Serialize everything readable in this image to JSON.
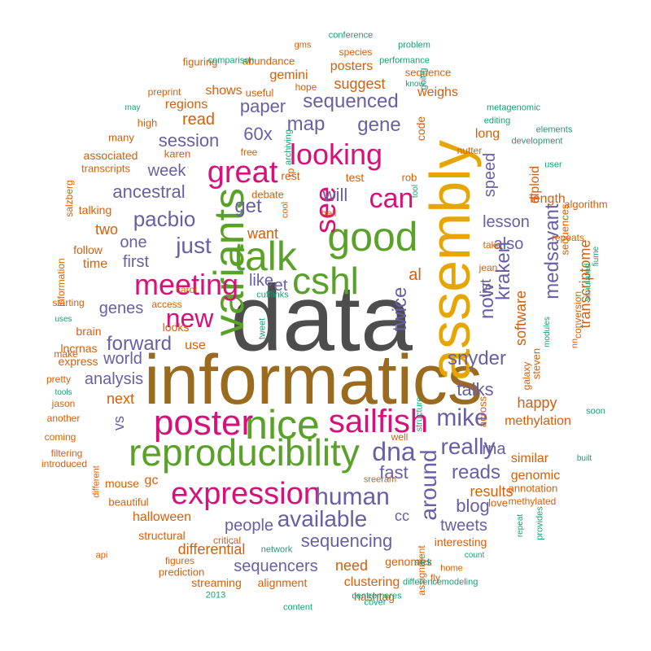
{
  "colors": {
    "dark": "#4d4d4d",
    "gold": "#e6a500",
    "olive": "#9a6b1e",
    "green": "#5aa12a",
    "magenta": "#d6127a",
    "purple": "#6a5fa6",
    "orange": "#d75f0b",
    "teal": "#1b9e77"
  },
  "words": [
    {
      "text": "data",
      "size": 115,
      "color": "dark"
    },
    {
      "text": "informatics",
      "size": 86,
      "color": "olive"
    },
    {
      "text": "assembly",
      "size": 70,
      "color": "gold"
    },
    {
      "text": "variants",
      "size": 52,
      "color": "green"
    },
    {
      "text": "reproducibility",
      "size": 46,
      "color": "green"
    },
    {
      "text": "nice",
      "size": 50,
      "color": "green"
    },
    {
      "text": "good",
      "size": 50,
      "color": "green"
    },
    {
      "text": "talk",
      "size": 50,
      "color": "green"
    },
    {
      "text": "cshl",
      "size": 46,
      "color": "green"
    },
    {
      "text": "poster",
      "size": 44,
      "color": "magenta"
    },
    {
      "text": "sailfish",
      "size": 40,
      "color": "magenta"
    },
    {
      "text": "expression",
      "size": 38,
      "color": "magenta"
    },
    {
      "text": "great",
      "size": 38,
      "color": "magenta"
    },
    {
      "text": "looking",
      "size": 36,
      "color": "magenta"
    },
    {
      "text": "meeting",
      "size": 36,
      "color": "magenta"
    },
    {
      "text": "see",
      "size": 36,
      "color": "magenta"
    },
    {
      "text": "can",
      "size": 34,
      "color": "magenta"
    },
    {
      "text": "new",
      "size": 32,
      "color": "magenta"
    },
    {
      "text": "dna",
      "size": 32,
      "color": "purple"
    },
    {
      "text": "human",
      "size": 30,
      "color": "purple"
    },
    {
      "text": "mike",
      "size": 30,
      "color": "purple"
    },
    {
      "text": "available",
      "size": 28,
      "color": "purple"
    },
    {
      "text": "really",
      "size": 28,
      "color": "purple"
    },
    {
      "text": "around",
      "size": 28,
      "color": "purple"
    },
    {
      "text": "just",
      "size": 28,
      "color": "purple"
    },
    {
      "text": "pacbio",
      "size": 26,
      "color": "purple"
    },
    {
      "text": "snyder",
      "size": 24,
      "color": "purple"
    },
    {
      "text": "kraken",
      "size": 24,
      "color": "purple"
    },
    {
      "text": "medsavant",
      "size": 24,
      "color": "purple"
    },
    {
      "text": "twice",
      "size": 24,
      "color": "purple"
    },
    {
      "text": "now",
      "size": 24,
      "color": "purple"
    },
    {
      "text": "forward",
      "size": 24,
      "color": "purple"
    },
    {
      "text": "sequenced",
      "size": 24,
      "color": "purple"
    },
    {
      "text": "gene",
      "size": 24,
      "color": "purple"
    },
    {
      "text": "map",
      "size": 24,
      "color": "purple"
    },
    {
      "text": "paper",
      "size": 22,
      "color": "purple"
    },
    {
      "text": "get",
      "size": 24,
      "color": "purple"
    },
    {
      "text": "60x",
      "size": 22,
      "color": "purple"
    },
    {
      "text": "session",
      "size": 22,
      "color": "purple"
    },
    {
      "text": "week",
      "size": 20,
      "color": "purple"
    },
    {
      "text": "ancestral",
      "size": 22,
      "color": "purple"
    },
    {
      "text": "will",
      "size": 22,
      "color": "purple"
    },
    {
      "text": "one",
      "size": 20,
      "color": "purple"
    },
    {
      "text": "first",
      "size": 20,
      "color": "purple"
    },
    {
      "text": "like",
      "size": 20,
      "color": "purple"
    },
    {
      "text": "et",
      "size": 20,
      "color": "purple"
    },
    {
      "text": "genes",
      "size": 20,
      "color": "purple"
    },
    {
      "text": "world",
      "size": 20,
      "color": "purple"
    },
    {
      "text": "analysis",
      "size": 20,
      "color": "purple"
    },
    {
      "text": "talks",
      "size": 22,
      "color": "purple"
    },
    {
      "text": "reads",
      "size": 24,
      "color": "purple"
    },
    {
      "text": "fast",
      "size": 22,
      "color": "purple"
    },
    {
      "text": "blog",
      "size": 22,
      "color": "purple"
    },
    {
      "text": "people",
      "size": 20,
      "color": "purple"
    },
    {
      "text": "sequencing",
      "size": 22,
      "color": "purple"
    },
    {
      "text": "sequencers",
      "size": 20,
      "color": "purple"
    },
    {
      "text": "speed",
      "size": 20,
      "color": "purple"
    },
    {
      "text": "lesson",
      "size": 20,
      "color": "purple"
    },
    {
      "text": "also",
      "size": 20,
      "color": "purple"
    },
    {
      "text": "list",
      "size": 18,
      "color": "purple"
    },
    {
      "text": "rna",
      "size": 20,
      "color": "purple"
    },
    {
      "text": "vs",
      "size": 18,
      "color": "purple"
    },
    {
      "text": "tweets",
      "size": 20,
      "color": "purple"
    },
    {
      "text": "cc",
      "size": 18,
      "color": "purple"
    },
    {
      "text": "software",
      "size": 18,
      "color": "orange"
    },
    {
      "text": "transcriptome",
      "size": 18,
      "color": "orange"
    },
    {
      "text": "happy",
      "size": 18,
      "color": "orange"
    },
    {
      "text": "methylation",
      "size": 16,
      "color": "orange"
    },
    {
      "text": "results",
      "size": 18,
      "color": "orange"
    },
    {
      "text": "genomic",
      "size": 16,
      "color": "orange"
    },
    {
      "text": "similar",
      "size": 16,
      "color": "orange"
    },
    {
      "text": "differential",
      "size": 18,
      "color": "orange"
    },
    {
      "text": "halloween",
      "size": 16,
      "color": "orange"
    },
    {
      "text": "structural",
      "size": 14,
      "color": "orange"
    },
    {
      "text": "need",
      "size": 18,
      "color": "orange"
    },
    {
      "text": "clustering",
      "size": 16,
      "color": "orange"
    },
    {
      "text": "alignment",
      "size": 14,
      "color": "orange"
    },
    {
      "text": "hashtag",
      "size": 14,
      "color": "orange"
    },
    {
      "text": "streaming",
      "size": 14,
      "color": "orange"
    },
    {
      "text": "prediction",
      "size": 13,
      "color": "orange"
    },
    {
      "text": "figures",
      "size": 12,
      "color": "orange"
    },
    {
      "text": "genomes",
      "size": 14,
      "color": "orange"
    },
    {
      "text": "interesting",
      "size": 14,
      "color": "orange"
    },
    {
      "text": "annotation",
      "size": 13,
      "color": "orange"
    },
    {
      "text": "methylated",
      "size": 12,
      "color": "orange"
    },
    {
      "text": "love",
      "size": 13,
      "color": "orange"
    },
    {
      "text": "suggest",
      "size": 18,
      "color": "orange"
    },
    {
      "text": "read",
      "size": 20,
      "color": "orange"
    },
    {
      "text": "regions",
      "size": 16,
      "color": "orange"
    },
    {
      "text": "shows",
      "size": 16,
      "color": "orange"
    },
    {
      "text": "gemini",
      "size": 16,
      "color": "orange"
    },
    {
      "text": "posters",
      "size": 16,
      "color": "orange"
    },
    {
      "text": "weighs",
      "size": 16,
      "color": "orange"
    },
    {
      "text": "code",
      "size": 14,
      "color": "orange"
    },
    {
      "text": "long",
      "size": 16,
      "color": "orange"
    },
    {
      "text": "diploid",
      "size": 16,
      "color": "orange"
    },
    {
      "text": "length",
      "size": 16,
      "color": "orange"
    },
    {
      "text": "al",
      "size": 20,
      "color": "orange"
    },
    {
      "text": "want",
      "size": 18,
      "color": "orange"
    },
    {
      "text": "two",
      "size": 18,
      "color": "orange"
    },
    {
      "text": "time",
      "size": 16,
      "color": "orange"
    },
    {
      "text": "brain",
      "size": 14,
      "color": "orange"
    },
    {
      "text": "lncrnas",
      "size": 14,
      "color": "orange"
    },
    {
      "text": "express",
      "size": 14,
      "color": "orange"
    },
    {
      "text": "next",
      "size": 18,
      "color": "orange"
    },
    {
      "text": "gc",
      "size": 16,
      "color": "orange"
    },
    {
      "text": "mouse",
      "size": 14,
      "color": "orange"
    },
    {
      "text": "beautiful",
      "size": 13,
      "color": "orange"
    },
    {
      "text": "looks",
      "size": 14,
      "color": "orange"
    },
    {
      "text": "use",
      "size": 16,
      "color": "orange"
    },
    {
      "text": "test",
      "size": 14,
      "color": "orange"
    },
    {
      "text": "rob",
      "size": 13,
      "color": "orange"
    },
    {
      "text": "rest",
      "size": 14,
      "color": "orange"
    },
    {
      "text": "debate",
      "size": 13,
      "color": "orange"
    },
    {
      "text": "hell",
      "size": 12,
      "color": "orange"
    },
    {
      "text": "rp",
      "size": 12,
      "color": "orange"
    },
    {
      "text": "free",
      "size": 12,
      "color": "orange"
    },
    {
      "text": "karen",
      "size": 13,
      "color": "orange"
    },
    {
      "text": "associated",
      "size": 14,
      "color": "orange"
    },
    {
      "text": "transcripts",
      "size": 13,
      "color": "orange"
    },
    {
      "text": "talking",
      "size": 14,
      "color": "orange"
    },
    {
      "text": "follow",
      "size": 14,
      "color": "orange"
    },
    {
      "text": "many",
      "size": 13,
      "color": "orange"
    },
    {
      "text": "high",
      "size": 13,
      "color": "orange"
    },
    {
      "text": "figuring",
      "size": 13,
      "color": "orange"
    },
    {
      "text": "abundance",
      "size": 13,
      "color": "orange"
    },
    {
      "text": "preprint",
      "size": 12,
      "color": "orange"
    },
    {
      "text": "useful",
      "size": 13,
      "color": "orange"
    },
    {
      "text": "hope",
      "size": 12,
      "color": "orange"
    },
    {
      "text": "sequence",
      "size": 13,
      "color": "orange"
    },
    {
      "text": "species",
      "size": 12,
      "color": "orange"
    },
    {
      "text": "nutter",
      "size": 12,
      "color": "orange"
    },
    {
      "text": "algorithm",
      "size": 13,
      "color": "orange"
    },
    {
      "text": "repeats",
      "size": 12,
      "color": "orange"
    },
    {
      "text": "sequences",
      "size": 13,
      "color": "orange"
    },
    {
      "text": "steven",
      "size": 13,
      "color": "orange"
    },
    {
      "text": "galaxy",
      "size": 12,
      "color": "orange"
    },
    {
      "text": "conversion",
      "size": 12,
      "color": "orange"
    },
    {
      "text": "jean",
      "size": 12,
      "color": "orange"
    },
    {
      "text": "take",
      "size": 12,
      "color": "orange"
    },
    {
      "text": "carol",
      "size": 12,
      "color": "orange"
    },
    {
      "text": "access",
      "size": 12,
      "color": "orange"
    },
    {
      "text": "information",
      "size": 12,
      "color": "orange"
    },
    {
      "text": "starting",
      "size": 12,
      "color": "orange"
    },
    {
      "text": "salzberg",
      "size": 12,
      "color": "orange"
    },
    {
      "text": "make",
      "size": 12,
      "color": "orange"
    },
    {
      "text": "pretty",
      "size": 12,
      "color": "orange"
    },
    {
      "text": "jason",
      "size": 12,
      "color": "orange"
    },
    {
      "text": "another",
      "size": 12,
      "color": "orange"
    },
    {
      "text": "coming",
      "size": 12,
      "color": "orange"
    },
    {
      "text": "introduced",
      "size": 12,
      "color": "orange"
    },
    {
      "text": "filtering",
      "size": 12,
      "color": "orange"
    },
    {
      "text": "different",
      "size": 11,
      "color": "orange"
    },
    {
      "text": "api",
      "size": 11,
      "color": "orange"
    },
    {
      "text": "cool",
      "size": 11,
      "color": "orange"
    },
    {
      "text": "assignment",
      "size": 12,
      "color": "orange"
    },
    {
      "text": "home",
      "size": 11,
      "color": "orange"
    },
    {
      "text": "fly",
      "size": 12,
      "color": "orange"
    },
    {
      "text": "well",
      "size": 12,
      "color": "orange"
    },
    {
      "text": "critical",
      "size": 12,
      "color": "orange"
    },
    {
      "text": "sreeram",
      "size": 11,
      "color": "orange"
    },
    {
      "text": "across",
      "size": 13,
      "color": "orange"
    },
    {
      "text": "nn",
      "size": 11,
      "color": "orange"
    },
    {
      "text": "gms",
      "size": 11,
      "color": "orange"
    },
    {
      "text": "conference",
      "size": 11,
      "color": "teal"
    },
    {
      "text": "problem",
      "size": 11,
      "color": "teal"
    },
    {
      "text": "performance",
      "size": 11,
      "color": "teal"
    },
    {
      "text": "comparison",
      "size": 11,
      "color": "teal"
    },
    {
      "text": "going",
      "size": 11,
      "color": "teal"
    },
    {
      "text": "know",
      "size": 10,
      "color": "teal"
    },
    {
      "text": "may",
      "size": 10,
      "color": "teal"
    },
    {
      "text": "metagenomic",
      "size": 11,
      "color": "teal"
    },
    {
      "text": "editing",
      "size": 11,
      "color": "teal"
    },
    {
      "text": "elements",
      "size": 11,
      "color": "teal"
    },
    {
      "text": "development",
      "size": 11,
      "color": "teal"
    },
    {
      "text": "user",
      "size": 11,
      "color": "teal"
    },
    {
      "text": "archiving",
      "size": 11,
      "color": "teal"
    },
    {
      "text": "tool",
      "size": 10,
      "color": "teal"
    },
    {
      "text": "fiume",
      "size": 10,
      "color": "teal"
    },
    {
      "text": "simulated",
      "size": 11,
      "color": "teal"
    },
    {
      "text": "uses",
      "size": 10,
      "color": "teal"
    },
    {
      "text": "cufflinks",
      "size": 11,
      "color": "teal"
    },
    {
      "text": "tweet",
      "size": 11,
      "color": "teal"
    },
    {
      "text": "modules",
      "size": 10,
      "color": "teal"
    },
    {
      "text": "tools",
      "size": 10,
      "color": "teal"
    },
    {
      "text": "soon",
      "size": 11,
      "color": "teal"
    },
    {
      "text": "structure",
      "size": 11,
      "color": "teal"
    },
    {
      "text": "built",
      "size": 10,
      "color": "teal"
    },
    {
      "text": "provides",
      "size": 11,
      "color": "teal"
    },
    {
      "text": "repeat",
      "size": 10,
      "color": "teal"
    },
    {
      "text": "count",
      "size": 10,
      "color": "teal"
    },
    {
      "text": "network",
      "size": 11,
      "color": "teal"
    },
    {
      "text": "slick",
      "size": 11,
      "color": "teal"
    },
    {
      "text": "2013",
      "size": 11,
      "color": "teal"
    },
    {
      "text": "difference",
      "size": 11,
      "color": "teal"
    },
    {
      "text": "modeling",
      "size": 11,
      "color": "teal"
    },
    {
      "text": "centromeres",
      "size": 11,
      "color": "teal"
    },
    {
      "text": "cover",
      "size": 11,
      "color": "teal"
    },
    {
      "text": "content",
      "size": 11,
      "color": "teal"
    },
    {
      "text": "differences",
      "size": 11,
      "color": "teal"
    }
  ]
}
